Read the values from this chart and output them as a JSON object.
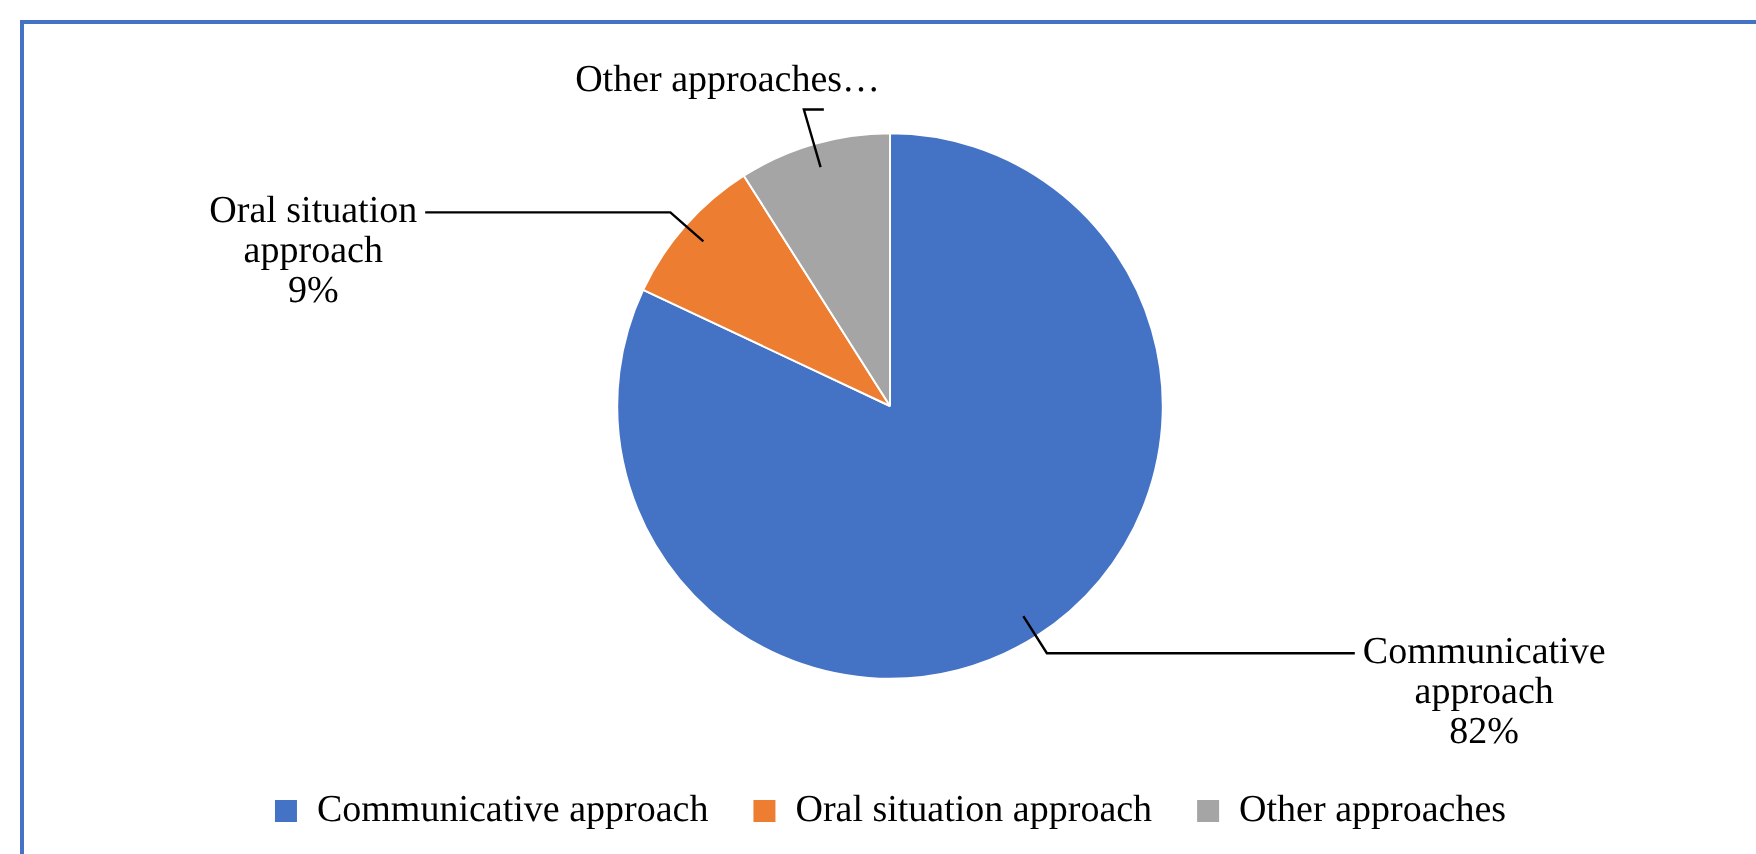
{
  "chart_data": {
    "type": "pie",
    "categories": [
      "Communicative approach",
      "Oral situation approach",
      "Other approaches"
    ],
    "values": [
      82,
      9,
      9
    ],
    "colors": [
      "#4472c4",
      "#ed7d31",
      "#a5a5a5"
    ],
    "value_labels": [
      "Communicative approach\n82%",
      "Oral situation approach\n9%",
      "Other approaches…"
    ],
    "legend": "bottom"
  }
}
